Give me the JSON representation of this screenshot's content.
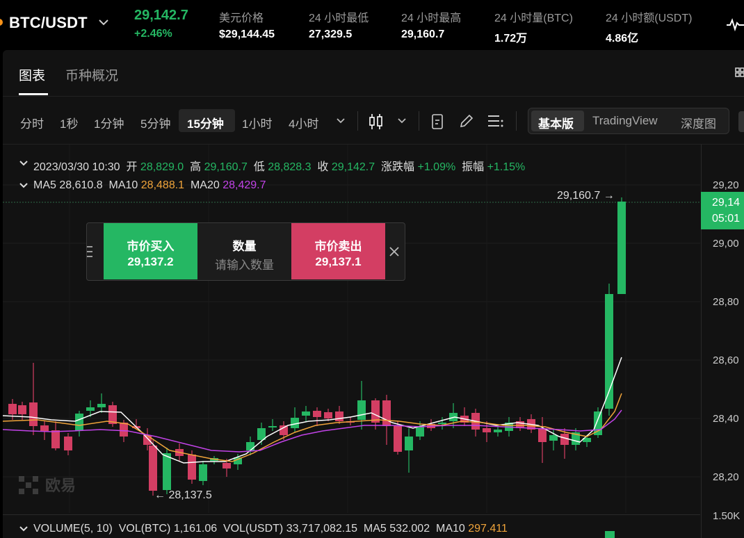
{
  "header": {
    "pair": "BTC/USDT",
    "last_price": "29,142.7",
    "change_pct": "+2.46%",
    "stats": [
      {
        "label": "美元价格",
        "value": "$29,144.45"
      },
      {
        "label": "24 小时最低",
        "value": "27,329.5"
      },
      {
        "label": "24 小时最高",
        "value": "29,160.7"
      },
      {
        "label": "24 小时量(BTC)",
        "value": "1.72万"
      },
      {
        "label": "24 小时额(USDT)",
        "value": "4.86亿"
      }
    ]
  },
  "tabs": {
    "chart": "图表",
    "overview": "币种概况"
  },
  "toolbar": {
    "intervals": [
      "分时",
      "1秒",
      "1分钟",
      "5分钟",
      "15分钟",
      "1小时",
      "4小时"
    ],
    "active_interval": "15分钟",
    "modes": [
      "基本版",
      "TradingView",
      "深度图"
    ],
    "active_mode": "基本版"
  },
  "info": {
    "datetime": "2023/03/30 10:30",
    "open_label": "开",
    "open": "28,829.0",
    "high_label": "高",
    "high": "29,160.7",
    "low_label": "低",
    "low": "28,828.3",
    "close_label": "收",
    "close": "29,142.7",
    "change_label": "涨跌幅",
    "change": "+1.09%",
    "amp_label": "振幅",
    "amp": "+1.15%",
    "ma5_label": "MA5",
    "ma5": "28,610.8",
    "ma10_label": "MA10",
    "ma10": "28,488.1",
    "ma20_label": "MA20",
    "ma20": "28,429.7"
  },
  "chart_labels": {
    "high_marker": "29,160.7",
    "low_marker": "28,137.5"
  },
  "axis": {
    "labels": [
      "29,20",
      "29,00",
      "28,80",
      "28,60",
      "28,40",
      "28,20",
      "1.50K"
    ],
    "current_price": "29,14",
    "countdown": "05:01"
  },
  "quick_trade": {
    "buy_label": "市价买入",
    "buy_price": "29,137.2",
    "qty_label": "数量",
    "qty_placeholder": "请输入数量",
    "sell_label": "市价卖出",
    "sell_price": "29,137.1"
  },
  "watermark": "欧易",
  "volume": {
    "title": "VOLUME(5, 10)",
    "vol_btc_label": "VOL(BTC)",
    "vol_btc": "1,161.06",
    "vol_usdt_label": "VOL(USDT)",
    "vol_usdt": "33,717,082.15",
    "ma5_label": "MA5",
    "ma5": "532.002",
    "ma10_label": "MA10",
    "ma10": "297.411"
  },
  "colors": {
    "up": "#25b763",
    "down": "#d33e63",
    "ma5": "#ffffff",
    "ma10": "#f0a43a",
    "ma20": "#c243e8"
  }
}
